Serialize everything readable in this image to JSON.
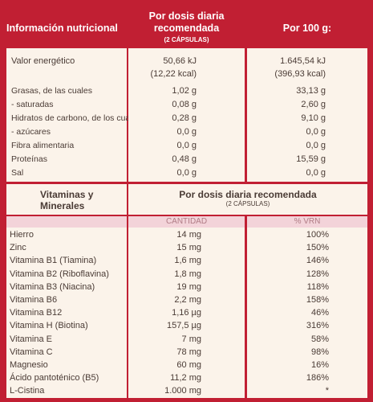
{
  "colors": {
    "background": "#c11f33",
    "panel": "#fbf3ea",
    "header_band": "#f3d3d9"
  },
  "nutrition": {
    "headers": {
      "col1": "Información nutricional",
      "col2": "Por dosis diaria recomendada",
      "col2_sub": "(2 CÁPSULAS)",
      "col3": "Por 100 g:"
    },
    "energy": {
      "label": "Valor energético",
      "dose_kj": "50,66 kJ",
      "dose_kcal": "(12,22 kcal)",
      "per100_kj": "1.645,54 kJ",
      "per100_kcal": "(396,93 kcal)"
    },
    "rows": [
      {
        "label": "Grasas, de las cuales",
        "dose": "1,02 g",
        "per100": "33,13 g"
      },
      {
        "label": "- saturadas",
        "dose": "0,08 g",
        "per100": "2,60 g"
      },
      {
        "label": "Hidratos de carbono, de los cuales",
        "dose": "0,28 g",
        "per100": "9,10 g"
      },
      {
        "label": "- azúcares",
        "dose": "0,0 g",
        "per100": "0,0 g"
      },
      {
        "label": "Fibra alimentaria",
        "dose": "0,0 g",
        "per100": "0,0 g"
      },
      {
        "label": "Proteínas",
        "dose": "0,48 g",
        "per100": "15,59 g"
      },
      {
        "label": "Sal",
        "dose": "0,0 g",
        "per100": "0,0 g"
      }
    ]
  },
  "vitamins": {
    "headers": {
      "col1": "Vitaminas y Minerales",
      "col2": "Por dosis diaria recomendada",
      "col2_sub": "(2 CÁPSULAS)",
      "qty": "CANTIDAD",
      "vrn": "% VRN"
    },
    "rows": [
      {
        "label": "Hierro",
        "qty": "14 mg",
        "vrn": "100%"
      },
      {
        "label": "Zinc",
        "qty": "15 mg",
        "vrn": "150%"
      },
      {
        "label": "Vitamina B1 (Tiamina)",
        "qty": "1,6 mg",
        "vrn": "146%"
      },
      {
        "label": "Vitamina B2 (Riboflavina)",
        "qty": "1,8 mg",
        "vrn": "128%"
      },
      {
        "label": "Vitamina B3 (Niacina)",
        "qty": "19 mg",
        "vrn": "118%"
      },
      {
        "label": "Vitamina B6",
        "qty": "2,2 mg",
        "vrn": "158%"
      },
      {
        "label": "Vitamina B12",
        "qty": "1,16 µg",
        "vrn": "46%"
      },
      {
        "label": "Vitamina H (Biotina)",
        "qty": "157,5 µg",
        "vrn": "316%"
      },
      {
        "label": "Vitamina E",
        "qty": "7 mg",
        "vrn": "58%"
      },
      {
        "label": "Vitamina C",
        "qty": "78 mg",
        "vrn": "98%"
      },
      {
        "label": "Magnesio",
        "qty": "60 mg",
        "vrn": "16%"
      },
      {
        "label": "Ácido pantoténico (B5)",
        "qty": "11,2 mg",
        "vrn": "186%"
      },
      {
        "label": "L-Cistina",
        "qty": "1.000 mg",
        "vrn": "*"
      }
    ]
  }
}
